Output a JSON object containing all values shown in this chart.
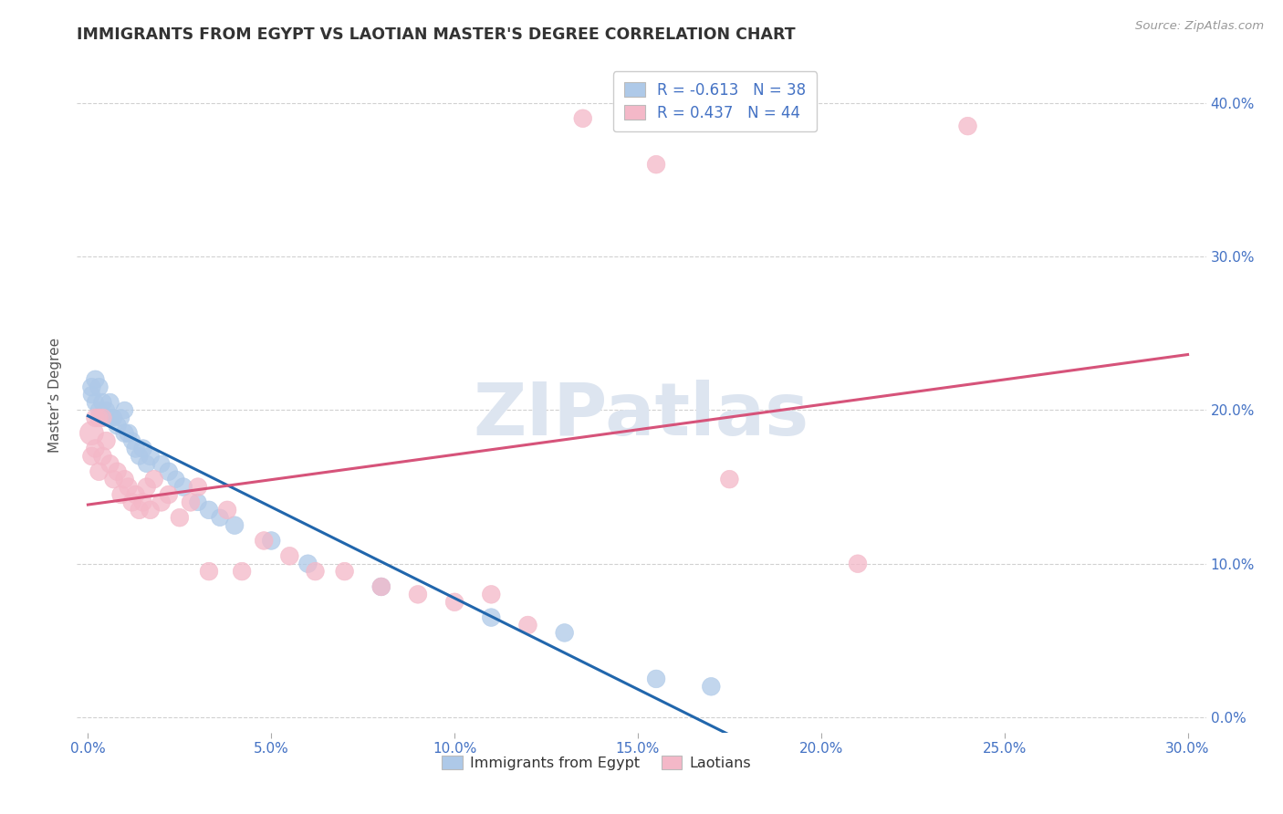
{
  "title": "IMMIGRANTS FROM EGYPT VS LAOTIAN MASTER'S DEGREE CORRELATION CHART",
  "source_text": "Source: ZipAtlas.com",
  "xlabel_blue": "Immigrants from Egypt",
  "xlabel_pink": "Laotians",
  "ylabel": "Master’s Degree",
  "x_ticks": [
    0.0,
    0.05,
    0.1,
    0.15,
    0.2,
    0.25,
    0.3
  ],
  "x_tick_labels": [
    "0.0%",
    "5.0%",
    "10.0%",
    "15.0%",
    "20.0%",
    "25.0%",
    "30.0%"
  ],
  "y_ticks": [
    0.0,
    0.1,
    0.2,
    0.3,
    0.4
  ],
  "y_tick_labels": [
    "0.0%",
    "10.0%",
    "20.0%",
    "30.0%",
    "40.0%"
  ],
  "xlim": [
    -0.003,
    0.305
  ],
  "ylim": [
    -0.01,
    0.43
  ],
  "legend_r_blue": "-0.613",
  "legend_n_blue": "38",
  "legend_r_pink": "0.437",
  "legend_n_pink": "44",
  "blue_color": "#aec9e8",
  "pink_color": "#f4b8c8",
  "blue_line_color": "#2166ac",
  "pink_line_color": "#d6537a",
  "watermark": "ZIPatlas",
  "watermark_color": "#dde5f0",
  "title_color": "#333333",
  "axis_label_color": "#4472c4",
  "blue_scatter_x": [
    0.001,
    0.001,
    0.002,
    0.002,
    0.003,
    0.003,
    0.004,
    0.004,
    0.005,
    0.006,
    0.006,
    0.007,
    0.008,
    0.009,
    0.01,
    0.01,
    0.011,
    0.012,
    0.013,
    0.014,
    0.015,
    0.016,
    0.017,
    0.02,
    0.022,
    0.024,
    0.026,
    0.03,
    0.033,
    0.036,
    0.04,
    0.05,
    0.06,
    0.08,
    0.11,
    0.13,
    0.155,
    0.17
  ],
  "blue_scatter_y": [
    0.215,
    0.21,
    0.205,
    0.22,
    0.2,
    0.215,
    0.195,
    0.205,
    0.2,
    0.195,
    0.205,
    0.195,
    0.19,
    0.195,
    0.185,
    0.2,
    0.185,
    0.18,
    0.175,
    0.17,
    0.175,
    0.165,
    0.17,
    0.165,
    0.16,
    0.155,
    0.15,
    0.14,
    0.135,
    0.13,
    0.125,
    0.115,
    0.1,
    0.085,
    0.065,
    0.055,
    0.025,
    0.02
  ],
  "blue_scatter_s": [
    200,
    180,
    180,
    200,
    180,
    200,
    180,
    200,
    180,
    180,
    200,
    180,
    200,
    180,
    200,
    180,
    200,
    180,
    200,
    180,
    200,
    180,
    200,
    180,
    200,
    180,
    200,
    180,
    200,
    180,
    200,
    200,
    200,
    200,
    200,
    200,
    200,
    200
  ],
  "pink_scatter_x": [
    0.001,
    0.001,
    0.002,
    0.002,
    0.003,
    0.003,
    0.004,
    0.004,
    0.005,
    0.006,
    0.007,
    0.008,
    0.009,
    0.01,
    0.011,
    0.012,
    0.013,
    0.014,
    0.015,
    0.016,
    0.017,
    0.018,
    0.02,
    0.022,
    0.025,
    0.028,
    0.03,
    0.033,
    0.038,
    0.042,
    0.048,
    0.055,
    0.062,
    0.07,
    0.08,
    0.09,
    0.1,
    0.11,
    0.12,
    0.135,
    0.155,
    0.175,
    0.21,
    0.24
  ],
  "pink_scatter_y": [
    0.185,
    0.17,
    0.175,
    0.195,
    0.16,
    0.195,
    0.17,
    0.195,
    0.18,
    0.165,
    0.155,
    0.16,
    0.145,
    0.155,
    0.15,
    0.14,
    0.145,
    0.135,
    0.14,
    0.15,
    0.135,
    0.155,
    0.14,
    0.145,
    0.13,
    0.14,
    0.15,
    0.095,
    0.135,
    0.095,
    0.115,
    0.105,
    0.095,
    0.095,
    0.085,
    0.08,
    0.075,
    0.08,
    0.06,
    0.39,
    0.36,
    0.155,
    0.1,
    0.385
  ],
  "pink_scatter_s": [
    350,
    200,
    200,
    200,
    200,
    200,
    200,
    200,
    200,
    200,
    200,
    200,
    200,
    200,
    200,
    200,
    200,
    200,
    200,
    200,
    200,
    200,
    200,
    200,
    200,
    200,
    200,
    200,
    200,
    200,
    200,
    200,
    200,
    200,
    200,
    200,
    200,
    200,
    200,
    200,
    200,
    200,
    200,
    200
  ],
  "blue_line_x": [
    0.0,
    0.175
  ],
  "pink_line_x": [
    0.0,
    0.3
  ]
}
